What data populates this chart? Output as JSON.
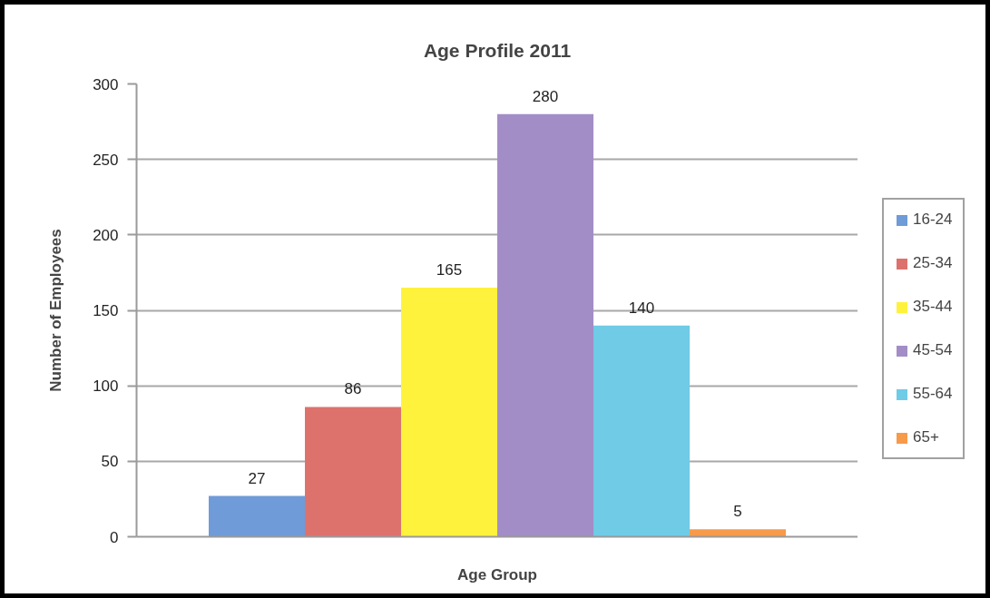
{
  "chart_data": {
    "type": "bar",
    "title": "Age Profile 2011",
    "xlabel": "Age Group",
    "ylabel": "Number of Employees",
    "categories": [
      null
    ],
    "series": [
      {
        "name": "16-24",
        "color": "#6f9bd8",
        "values": [
          27
        ]
      },
      {
        "name": "25-34",
        "color": "#dd726d",
        "values": [
          86
        ]
      },
      {
        "name": "35-44",
        "color": "#fff23c",
        "values": [
          165
        ]
      },
      {
        "name": "45-54",
        "color": "#a38dc6",
        "values": [
          280
        ]
      },
      {
        "name": "55-64",
        "color": "#6fcbe6",
        "values": [
          140
        ]
      },
      {
        "name": "65+",
        "color": "#f79a4a",
        "values": [
          5
        ]
      }
    ],
    "ylim": [
      0,
      300
    ],
    "yticks": [
      0,
      50,
      100,
      150,
      200,
      250,
      300
    ],
    "grid": "y",
    "legend": "right",
    "data_labels": true,
    "tick_labels": "y"
  }
}
